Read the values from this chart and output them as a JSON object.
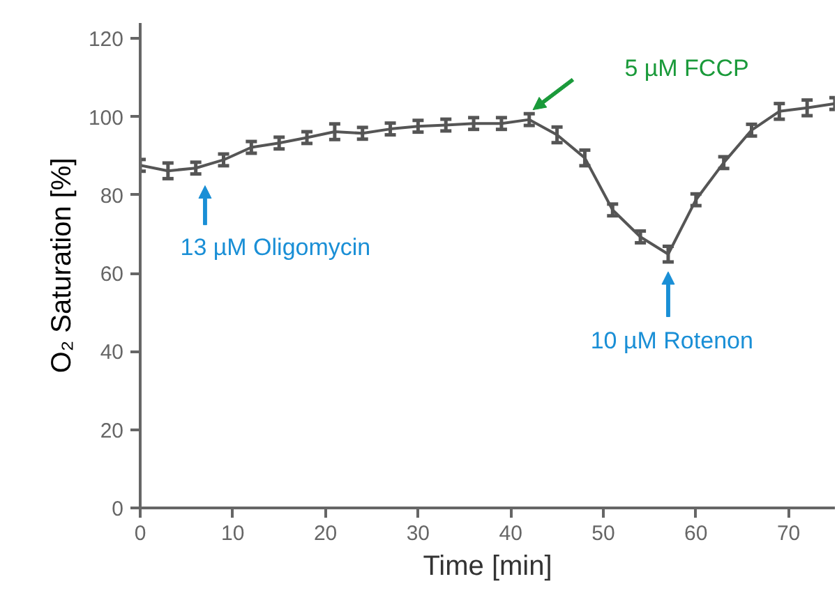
{
  "chart_data": {
    "type": "line",
    "xlabel": "Time [min]",
    "ylabel": "O₂ Saturation [%]",
    "x": [
      0,
      3,
      6,
      9,
      12,
      15,
      18,
      21,
      24,
      27,
      30,
      33,
      36,
      39,
      42,
      45,
      48,
      51,
      54,
      57,
      60,
      63,
      66,
      69,
      72,
      75
    ],
    "series": [
      {
        "color": "#555555",
        "values": [
          87.6,
          86.2,
          86.9,
          89,
          92.2,
          93.3,
          94.7,
          96.2,
          95.8,
          96.9,
          97.6,
          97.9,
          98.3,
          98.3,
          99.3,
          95.4,
          89.5,
          76.2,
          69.3,
          64.9,
          78.8,
          88.3,
          96.6,
          101.4,
          102.3,
          103.4
        ],
        "errors": [
          1.5,
          2,
          1.5,
          1.5,
          1.5,
          1.5,
          1.5,
          2,
          1.5,
          1.5,
          1.5,
          1.5,
          1.5,
          1.5,
          1.5,
          2,
          2,
          1.5,
          1.5,
          2,
          1.5,
          1.5,
          1.5,
          2,
          2,
          1.5
        ]
      }
    ],
    "xlim": [
      0,
      75
    ],
    "ylim": [
      0,
      124
    ],
    "xticks": [
      0,
      10,
      20,
      30,
      40,
      50,
      60,
      70
    ],
    "yticks": [
      0,
      20,
      40,
      60,
      80,
      100,
      120
    ],
    "grid": false,
    "marker": "none",
    "line_style": "solid",
    "annotations": [
      "13 µM Oligomycin",
      "5 µM FCCP",
      "10 µM Rotenon"
    ]
  }
}
